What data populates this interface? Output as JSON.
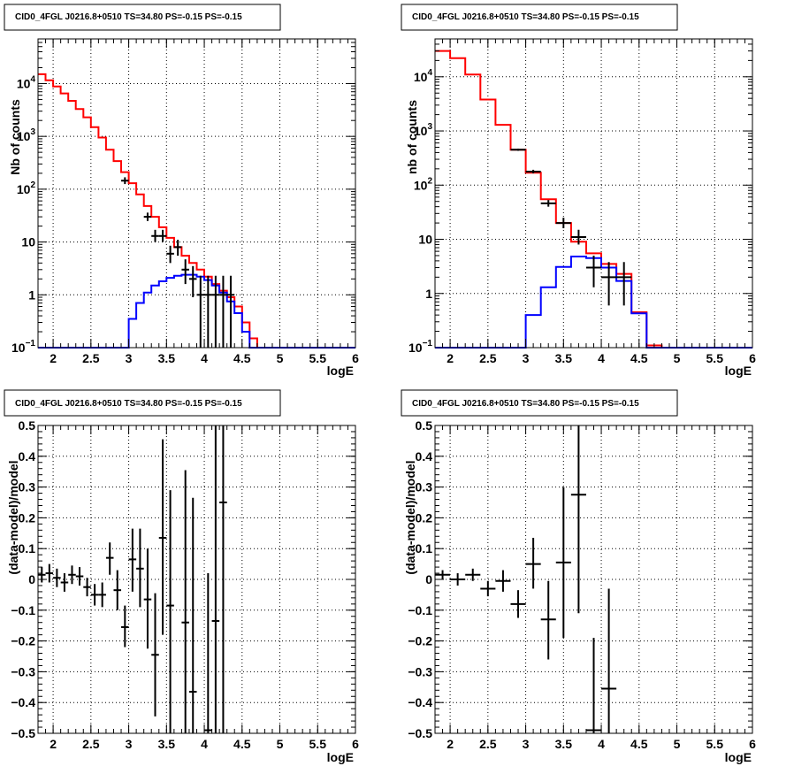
{
  "chart_data": [
    {
      "type": "line",
      "title": "CID0_4FGL J0216.8+0510 TS=34.80 PS=-0.15 PS=-0.15",
      "xlabel": "logE",
      "ylabel": "Nb of counts",
      "log_y": true,
      "xlim": [
        1.8,
        6.0
      ],
      "ylim": [
        0.1,
        70000
      ],
      "xticks": [
        "2",
        "2.5",
        "3",
        "3.5",
        "4",
        "4.5",
        "5",
        "5.5",
        "6"
      ],
      "yticks": [
        "10^-1",
        "1",
        "10",
        "10^2",
        "10^3",
        "10^4"
      ],
      "grid": true,
      "bin_edges": [
        1.8,
        1.9,
        2.0,
        2.1,
        2.2,
        2.3,
        2.4,
        2.5,
        2.6,
        2.7,
        2.8,
        2.9,
        3.0,
        3.1,
        3.2,
        3.3,
        3.4,
        3.5,
        3.6,
        3.7,
        3.8,
        3.9,
        4.0,
        4.1,
        4.2,
        4.3,
        4.4,
        4.5,
        4.6,
        4.7,
        4.8,
        4.9,
        5.0,
        5.1,
        5.2,
        5.3,
        5.4,
        5.5,
        5.6,
        5.7,
        5.8,
        5.9,
        6.0
      ],
      "series": [
        {
          "color": "#ff0000",
          "values": [
            15000,
            11500,
            8800,
            6500,
            4700,
            3300,
            2300,
            1500,
            950,
            560,
            340,
            210,
            130,
            80,
            48,
            30,
            19,
            12,
            8,
            5.5,
            4,
            3,
            2.2,
            1.6,
            1.2,
            0.9,
            0.6,
            0.3,
            0.15,
            0.1,
            0.1,
            0.1,
            0.1,
            0.1,
            0.1,
            0.1,
            0.1,
            0.1,
            0.1,
            0.1,
            0.1,
            0.1
          ]
        },
        {
          "color": "#0000ff",
          "values": [
            0.1,
            0.1,
            0.1,
            0.1,
            0.1,
            0.1,
            0.1,
            0.1,
            0.1,
            0.1,
            0.1,
            0.1,
            0.35,
            0.7,
            1.1,
            1.5,
            1.8,
            2.1,
            2.3,
            2.4,
            2.4,
            2.2,
            1.9,
            1.5,
            1.1,
            0.75,
            0.45,
            0.2,
            0.1,
            0.1,
            0.1,
            0.1,
            0.1,
            0.1,
            0.1,
            0.1,
            0.1,
            0.1,
            0.1,
            0.1,
            0.1,
            0.1
          ]
        }
      ],
      "points": [
        {
          "x": 2.95,
          "y": 145,
          "lo": 125,
          "hi": 168
        },
        {
          "x": 3.25,
          "y": 30,
          "lo": 25,
          "hi": 36
        },
        {
          "x": 3.35,
          "y": 13,
          "lo": 10,
          "hi": 17
        },
        {
          "x": 3.45,
          "y": 13,
          "lo": 10,
          "hi": 17
        },
        {
          "x": 3.55,
          "y": 6,
          "lo": 4,
          "hi": 8.5
        },
        {
          "x": 3.65,
          "y": 8,
          "lo": 5.5,
          "hi": 11
        },
        {
          "x": 3.75,
          "y": 3,
          "lo": 1.6,
          "hi": 4.7
        },
        {
          "x": 3.85,
          "y": 2,
          "lo": 0.9,
          "hi": 3.5
        },
        {
          "x": 3.95,
          "y": 1,
          "lo": 0.1,
          "hi": 2.3
        },
        {
          "x": 4.05,
          "y": 1,
          "lo": 0.1,
          "hi": 2.3
        },
        {
          "x": 4.15,
          "y": 1,
          "lo": 0.1,
          "hi": 2.3
        },
        {
          "x": 4.25,
          "y": 1,
          "lo": 0.1,
          "hi": 2.3
        },
        {
          "x": 4.35,
          "y": 1,
          "lo": 0.1,
          "hi": 2.3
        }
      ]
    },
    {
      "type": "line",
      "title": "CID0_4FGL J0216.8+0510 TS=34.80 PS=-0.15 PS=-0.15",
      "xlabel": "logE",
      "ylabel": "nb of counts",
      "log_y": true,
      "xlim": [
        1.8,
        6.0
      ],
      "ylim": [
        0.1,
        50000
      ],
      "xticks": [
        "2",
        "2.5",
        "3",
        "3.5",
        "4",
        "4.5",
        "5",
        "5.5",
        "6"
      ],
      "yticks": [
        "10^-1",
        "1",
        "10",
        "10^2",
        "10^3",
        "10^4"
      ],
      "grid": true,
      "bin_edges": [
        1.8,
        2.0,
        2.2,
        2.4,
        2.6,
        2.8,
        3.0,
        3.2,
        3.4,
        3.6,
        3.8,
        4.0,
        4.2,
        4.4,
        4.6,
        4.8,
        5.0,
        5.2,
        5.4,
        5.6,
        5.8,
        6.0
      ],
      "series": [
        {
          "color": "#ff0000",
          "values": [
            30000,
            22000,
            11000,
            3800,
            1300,
            450,
            170,
            55,
            20,
            9,
            5.5,
            3.5,
            2.3,
            0.45,
            0.11,
            0.1,
            0.1,
            0.1,
            0.1,
            0.1,
            0.1
          ]
        },
        {
          "color": "#0000ff",
          "values": [
            0.1,
            0.1,
            0.1,
            0.1,
            0.1,
            0.1,
            0.4,
            1.3,
            3.1,
            4.8,
            4.5,
            3.0,
            1.7,
            0.43,
            0.1,
            0.1,
            0.1,
            0.1,
            0.1,
            0.1,
            0.1
          ]
        }
      ],
      "points": [
        {
          "x": 2.9,
          "y": 450,
          "lo": 430,
          "hi": 470
        },
        {
          "x": 3.1,
          "y": 178,
          "lo": 165,
          "hi": 192
        },
        {
          "x": 3.3,
          "y": 46,
          "lo": 40,
          "hi": 53
        },
        {
          "x": 3.5,
          "y": 20,
          "lo": 16,
          "hi": 25
        },
        {
          "x": 3.7,
          "y": 11,
          "lo": 8,
          "hi": 15
        },
        {
          "x": 3.9,
          "y": 3,
          "lo": 1.3,
          "hi": 5
        },
        {
          "x": 4.1,
          "y": 2,
          "lo": 0.6,
          "hi": 3.8
        },
        {
          "x": 4.3,
          "y": 2,
          "lo": 0.6,
          "hi": 3.8
        }
      ]
    },
    {
      "type": "scatter",
      "title": "CID0_4FGL J0216.8+0510 TS=34.80 PS=-0.15 PS=-0.15",
      "xlabel": "logE",
      "ylabel": "(data-model)/model",
      "xlim": [
        1.8,
        6.0
      ],
      "ylim": [
        -0.5,
        0.5
      ],
      "xticks": [
        "2",
        "2.5",
        "3",
        "3.5",
        "4",
        "4.5",
        "5",
        "5.5",
        "6"
      ],
      "yticks": [
        "-0.5",
        "-0.4",
        "-0.3",
        "-0.2",
        "-0.1",
        "0",
        "0.1",
        "0.2",
        "0.3",
        "0.4",
        "0.5"
      ],
      "grid": true,
      "points": [
        {
          "x": 1.85,
          "y": 0.015,
          "xe": 0.05,
          "lo": -0.01,
          "hi": 0.04
        },
        {
          "x": 1.95,
          "y": 0.02,
          "xe": 0.05,
          "lo": -0.01,
          "hi": 0.05
        },
        {
          "x": 2.05,
          "y": 0.005,
          "xe": 0.05,
          "lo": -0.025,
          "hi": 0.035
        },
        {
          "x": 2.15,
          "y": -0.01,
          "xe": 0.05,
          "lo": -0.04,
          "hi": 0.02
        },
        {
          "x": 2.25,
          "y": 0.015,
          "xe": 0.05,
          "lo": -0.015,
          "hi": 0.045
        },
        {
          "x": 2.35,
          "y": 0.01,
          "xe": 0.05,
          "lo": -0.02,
          "hi": 0.04
        },
        {
          "x": 2.45,
          "y": -0.025,
          "xe": 0.05,
          "lo": -0.055,
          "hi": 0.005
        },
        {
          "x": 2.55,
          "y": -0.05,
          "xe": 0.05,
          "lo": -0.085,
          "hi": -0.015
        },
        {
          "x": 2.65,
          "y": -0.05,
          "xe": 0.05,
          "lo": -0.09,
          "hi": -0.01
        },
        {
          "x": 2.75,
          "y": 0.07,
          "xe": 0.05,
          "lo": 0.015,
          "hi": 0.12
        },
        {
          "x": 2.85,
          "y": -0.035,
          "xe": 0.05,
          "lo": -0.1,
          "hi": 0.03
        },
        {
          "x": 2.95,
          "y": -0.155,
          "xe": 0.05,
          "lo": -0.22,
          "hi": -0.085
        },
        {
          "x": 3.05,
          "y": 0.065,
          "xe": 0.05,
          "lo": -0.04,
          "hi": 0.165
        },
        {
          "x": 3.15,
          "y": 0.035,
          "xe": 0.05,
          "lo": -0.09,
          "hi": 0.165
        },
        {
          "x": 3.25,
          "y": -0.065,
          "xe": 0.05,
          "lo": -0.225,
          "hi": 0.1
        },
        {
          "x": 3.35,
          "y": -0.245,
          "xe": 0.05,
          "lo": -0.445,
          "hi": -0.045
        },
        {
          "x": 3.45,
          "y": 0.135,
          "xe": 0.05,
          "lo": -0.18,
          "hi": 0.455
        },
        {
          "x": 3.55,
          "y": -0.085,
          "xe": 0.05,
          "lo": -0.5,
          "hi": 0.29
        },
        {
          "x": 3.75,
          "y": -0.14,
          "xe": 0.05,
          "lo": -0.5,
          "hi": 0.355
        },
        {
          "x": 3.85,
          "y": -0.365,
          "xe": 0.05,
          "lo": -0.5,
          "hi": 0.265
        },
        {
          "x": 4.05,
          "y": -0.49,
          "xe": 0.05,
          "lo": -0.5,
          "hi": 0.02
        },
        {
          "x": 4.15,
          "y": -0.135,
          "xe": 0.05,
          "lo": -0.5,
          "hi": 0.5
        },
        {
          "x": 4.25,
          "y": 0.25,
          "xe": 0.05,
          "lo": -0.5,
          "hi": 0.5
        }
      ]
    },
    {
      "type": "scatter",
      "title": "CID0_4FGL J0216.8+0510 TS=34.80 PS=-0.15 PS=-0.15",
      "xlabel": "logE",
      "ylabel": "(data-model)/model",
      "xlim": [
        1.8,
        6.0
      ],
      "ylim": [
        -0.5,
        0.5
      ],
      "xticks": [
        "2",
        "2.5",
        "3",
        "3.5",
        "4",
        "4.5",
        "5",
        "5.5",
        "6"
      ],
      "yticks": [
        "-0.5",
        "-0.4",
        "-0.3",
        "-0.2",
        "-0.1",
        "0",
        "0.1",
        "0.2",
        "0.3",
        "0.4",
        "0.5"
      ],
      "grid": true,
      "points": [
        {
          "x": 1.9,
          "y": 0.015,
          "xe": 0.1,
          "lo": 0.0,
          "hi": 0.03
        },
        {
          "x": 2.1,
          "y": 0.0,
          "xe": 0.1,
          "lo": -0.02,
          "hi": 0.02
        },
        {
          "x": 2.3,
          "y": 0.015,
          "xe": 0.1,
          "lo": -0.005,
          "hi": 0.035
        },
        {
          "x": 2.5,
          "y": -0.03,
          "xe": 0.1,
          "lo": -0.055,
          "hi": -0.005
        },
        {
          "x": 2.7,
          "y": -0.005,
          "xe": 0.1,
          "lo": -0.04,
          "hi": 0.03
        },
        {
          "x": 2.9,
          "y": -0.08,
          "xe": 0.1,
          "lo": -0.125,
          "hi": -0.035
        },
        {
          "x": 3.1,
          "y": 0.05,
          "xe": 0.1,
          "lo": -0.03,
          "hi": 0.135
        },
        {
          "x": 3.3,
          "y": -0.13,
          "xe": 0.1,
          "lo": -0.26,
          "hi": -0.005
        },
        {
          "x": 3.5,
          "y": 0.055,
          "xe": 0.1,
          "lo": -0.19,
          "hi": 0.3
        },
        {
          "x": 3.7,
          "y": 0.275,
          "xe": 0.1,
          "lo": -0.11,
          "hi": 0.5
        },
        {
          "x": 3.9,
          "y": -0.49,
          "xe": 0.1,
          "lo": -0.5,
          "hi": -0.19
        },
        {
          "x": 4.1,
          "y": -0.355,
          "xe": 0.1,
          "lo": -0.5,
          "hi": -0.03
        }
      ]
    }
  ]
}
